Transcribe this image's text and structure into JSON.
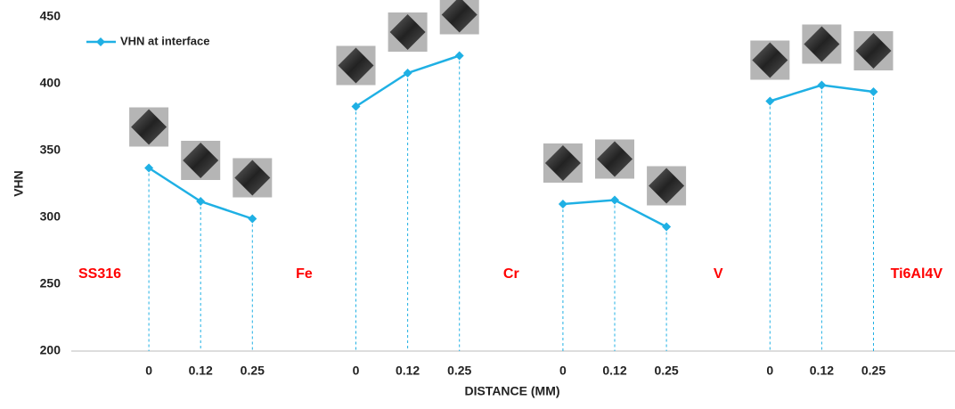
{
  "chart_data": {
    "type": "line",
    "y_label": "VHN",
    "x_label": "DISTANCE (MM)",
    "categories": [
      null,
      "0",
      "0.12",
      "0.25",
      null,
      "0",
      "0.12",
      "0.25",
      null,
      "0",
      "0.12",
      "0.25",
      null,
      "0",
      "0.12",
      "0.25",
      null
    ],
    "series": [
      {
        "name": "VHN at interface",
        "color": "#1fb0e4",
        "values": [
          null,
          337,
          312,
          299,
          null,
          383,
          408,
          421,
          null,
          310,
          313,
          293,
          null,
          387,
          399,
          394,
          null
        ]
      }
    ],
    "group_labels": [
      "SS316",
      "Fe",
      "Cr",
      "V",
      "Ti6Al4V"
    ],
    "group_label_color": "#ff0000",
    "ylim": [
      200,
      450
    ],
    "yticks": [
      200,
      250,
      300,
      350,
      400,
      450
    ],
    "drop_lines": true,
    "legend": "top-left"
  }
}
